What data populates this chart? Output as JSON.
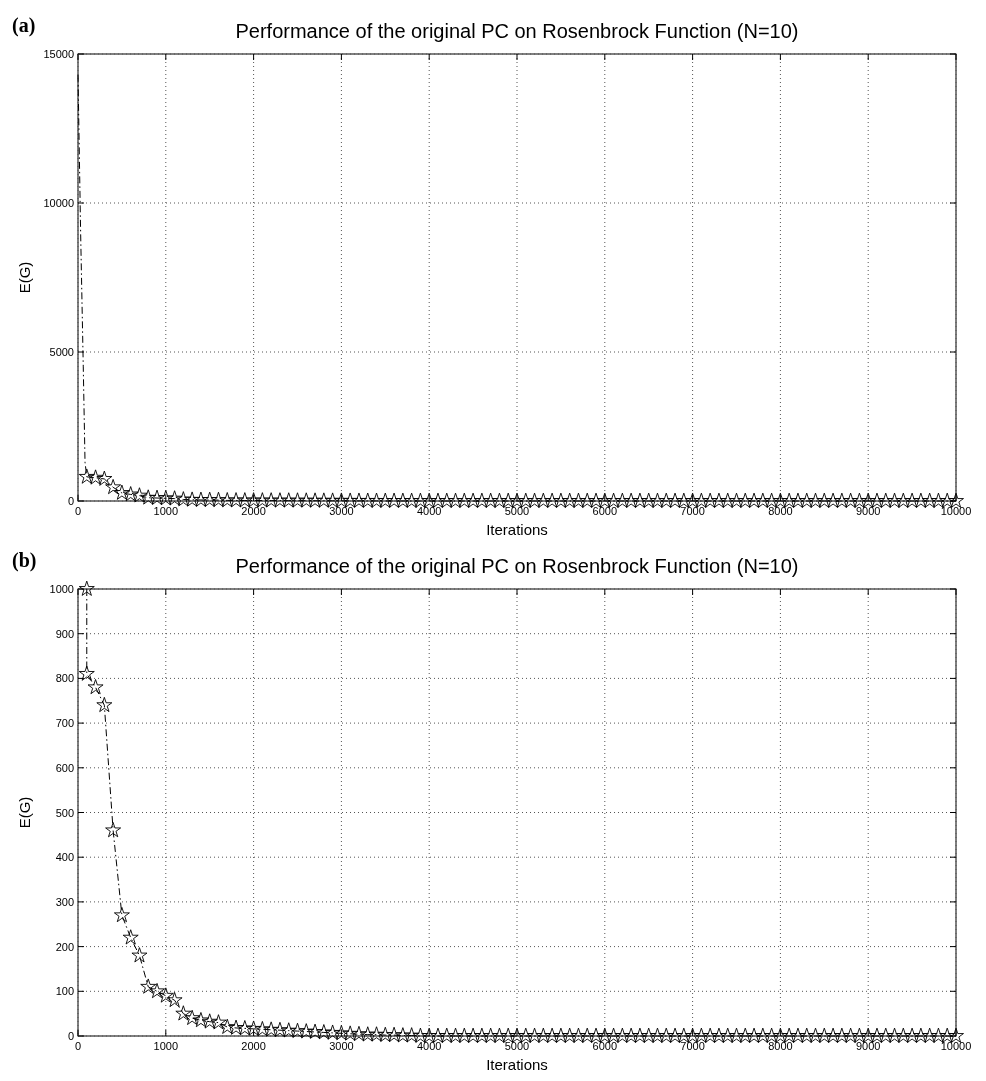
{
  "chart_data": [
    {
      "type": "line",
      "title": "Performance of the original PC on Rosenbrock Function (N=10)",
      "xlabel": "Iterations",
      "ylabel": "E(G)",
      "annotations": [
        "(a)"
      ],
      "xlim": [
        0,
        10000
      ],
      "xticks": [
        0,
        1000,
        2000,
        3000,
        4000,
        5000,
        6000,
        7000,
        8000,
        9000,
        10000
      ],
      "ylim": [
        0,
        15000
      ],
      "yticks": [
        0,
        5000,
        10000,
        15000
      ],
      "grid": true,
      "line_style": "dashed",
      "series": [
        {
          "color": "#000000",
          "marker": "none",
          "x": [
            0,
            30,
            60,
            80,
            100
          ],
          "values": [
            14300,
            9000,
            4500,
            1300,
            810
          ]
        },
        {
          "color": "#000000",
          "marker": "star",
          "x": [
            100,
            200,
            300,
            400,
            500,
            600,
            700,
            800,
            900,
            1000,
            1100,
            1200,
            1300,
            1400,
            1500,
            1600,
            1700,
            1800,
            1900,
            2000,
            2100,
            2200,
            2300,
            2400,
            2500,
            2600,
            2700,
            2800,
            2900,
            3000,
            3100,
            3200,
            3300,
            3400,
            3500,
            3600,
            3700,
            3800,
            3900,
            4000,
            4100,
            4200,
            4300,
            4400,
            4500,
            4600,
            4700,
            4800,
            4900,
            5000,
            5100,
            5200,
            5300,
            5400,
            5500,
            5600,
            5700,
            5800,
            5900,
            6000,
            6100,
            6200,
            6300,
            6400,
            6500,
            6600,
            6700,
            6800,
            6900,
            7000,
            7100,
            7200,
            7300,
            7400,
            7500,
            7600,
            7700,
            7800,
            7900,
            8000,
            8100,
            8200,
            8300,
            8400,
            8500,
            8600,
            8700,
            8800,
            8900,
            9000,
            9100,
            9200,
            9300,
            9400,
            9500,
            9600,
            9700,
            9800,
            9900,
            10000
          ],
          "values": [
            810,
            780,
            740,
            460,
            270,
            220,
            180,
            110,
            100,
            90,
            80,
            50,
            40,
            35,
            32,
            30,
            20,
            18,
            17,
            16,
            15,
            14,
            13,
            12,
            11,
            10,
            9,
            8,
            7,
            6,
            5,
            4,
            3,
            3,
            2,
            2,
            1,
            1,
            0,
            0,
            0,
            0,
            0,
            0,
            0,
            0,
            0,
            0,
            0,
            0,
            0,
            0,
            0,
            0,
            0,
            0,
            0,
            0,
            0,
            0,
            0,
            0,
            0,
            0,
            0,
            0,
            0,
            0,
            0,
            0,
            0,
            0,
            0,
            0,
            0,
            0,
            0,
            0,
            0,
            0,
            0,
            0,
            0,
            0,
            0,
            0,
            0,
            0,
            0,
            0,
            0,
            0,
            0,
            0,
            0,
            0,
            0,
            0,
            0,
            0
          ]
        }
      ]
    },
    {
      "type": "line",
      "title": "Performance of the original PC on Rosenbrock Function (N=10)",
      "xlabel": "Iterations",
      "ylabel": "E(G)",
      "annotations": [
        "(b)"
      ],
      "xlim": [
        0,
        10000
      ],
      "xticks": [
        0,
        1000,
        2000,
        3000,
        4000,
        5000,
        6000,
        7000,
        8000,
        9000,
        10000
      ],
      "ylim": [
        0,
        1000
      ],
      "yticks": [
        0,
        100,
        200,
        300,
        400,
        500,
        600,
        700,
        800,
        900,
        1000
      ],
      "grid": true,
      "line_style": "dashed",
      "series": [
        {
          "color": "#000000",
          "marker": "star",
          "x": [
            100,
            100,
            200,
            300,
            400,
            500,
            600,
            700,
            800,
            900,
            1000,
            1100,
            1200,
            1300,
            1400,
            1500,
            1600,
            1700,
            1800,
            1900,
            2000,
            2100,
            2200,
            2300,
            2400,
            2500,
            2600,
            2700,
            2800,
            2900,
            3000,
            3100,
            3200,
            3300,
            3400,
            3500,
            3600,
            3700,
            3800,
            3900,
            4000,
            4100,
            4200,
            4300,
            4400,
            4500,
            4600,
            4700,
            4800,
            4900,
            5000,
            5100,
            5200,
            5300,
            5400,
            5500,
            5600,
            5700,
            5800,
            5900,
            6000,
            6100,
            6200,
            6300,
            6400,
            6500,
            6600,
            6700,
            6800,
            6900,
            7000,
            7100,
            7200,
            7300,
            7400,
            7500,
            7600,
            7700,
            7800,
            7900,
            8000,
            8100,
            8200,
            8300,
            8400,
            8500,
            8600,
            8700,
            8800,
            8900,
            9000,
            9100,
            9200,
            9300,
            9400,
            9500,
            9600,
            9700,
            9800,
            9900,
            10000
          ],
          "values": [
            1000,
            810,
            780,
            740,
            460,
            270,
            220,
            180,
            110,
            100,
            90,
            80,
            50,
            40,
            35,
            32,
            30,
            20,
            18,
            17,
            16,
            15,
            14,
            13,
            12,
            11,
            10,
            9,
            8,
            7,
            6,
            5,
            4,
            3,
            3,
            2,
            2,
            1,
            1,
            0,
            0,
            0,
            0,
            0,
            0,
            0,
            0,
            0,
            0,
            0,
            0,
            0,
            0,
            0,
            0,
            0,
            0,
            0,
            0,
            0,
            0,
            0,
            0,
            0,
            0,
            0,
            0,
            0,
            0,
            0,
            0,
            0,
            0,
            0,
            0,
            0,
            0,
            0,
            0,
            0,
            0,
            0,
            0,
            0,
            0,
            0,
            0,
            0,
            0,
            0,
            0,
            0,
            0,
            0,
            0,
            0,
            0,
            0,
            0,
            0,
            0
          ]
        }
      ]
    }
  ]
}
